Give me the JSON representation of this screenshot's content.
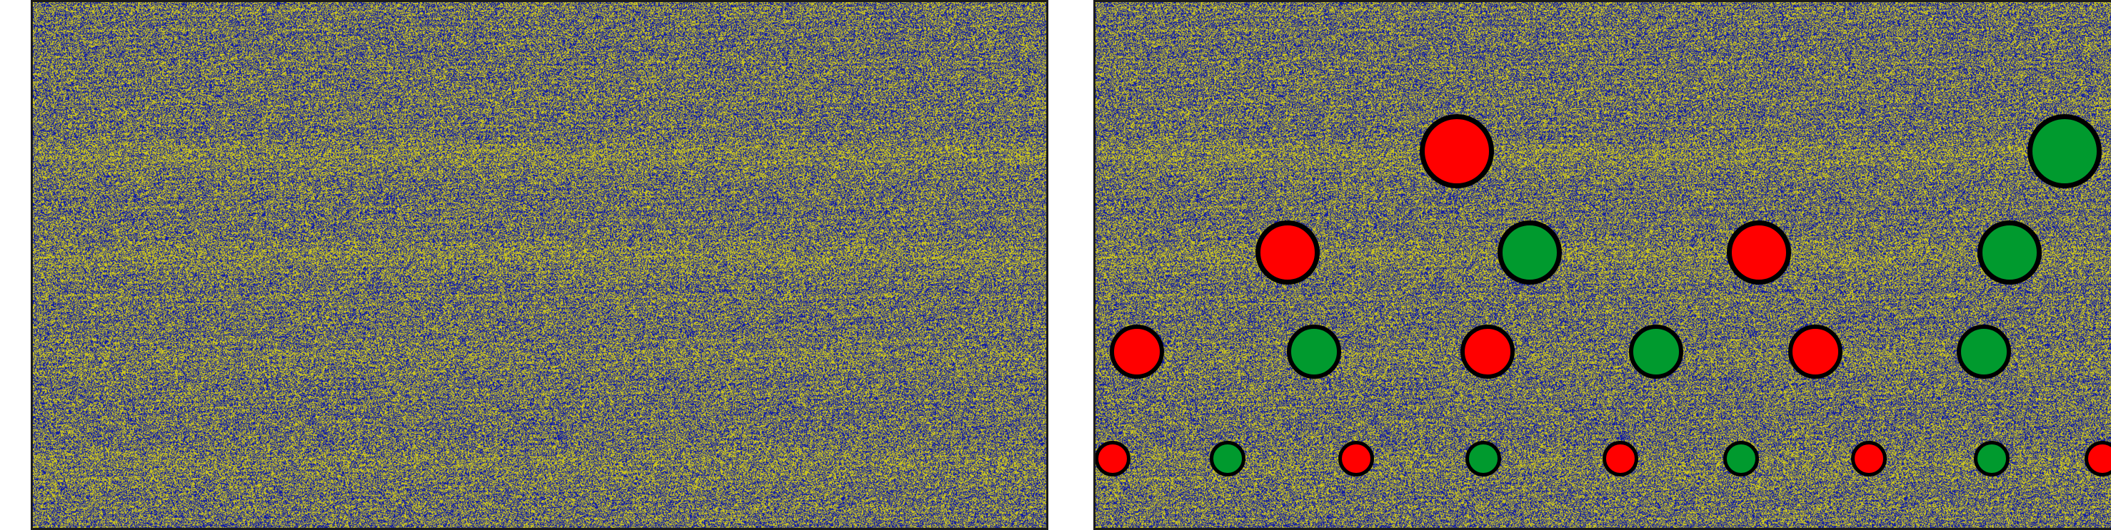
{
  "colors": {
    "noise_a": "#0f1aa8",
    "noise_b": "#cdc71e",
    "noise_bg": "#5e5a63",
    "frame": "#1b1b1b",
    "marker_red": "#ff0000",
    "marker_green": "#009a2e",
    "marker_outline": "#000000"
  },
  "panels": [
    {
      "name": "original-noise-panel",
      "markers_shown": false
    },
    {
      "name": "annotated-noise-panel",
      "markers_shown": true
    }
  ],
  "legend": [
    {
      "key": "red",
      "color": "marker_red"
    },
    {
      "key": "green",
      "color": "marker_green"
    }
  ]
}
